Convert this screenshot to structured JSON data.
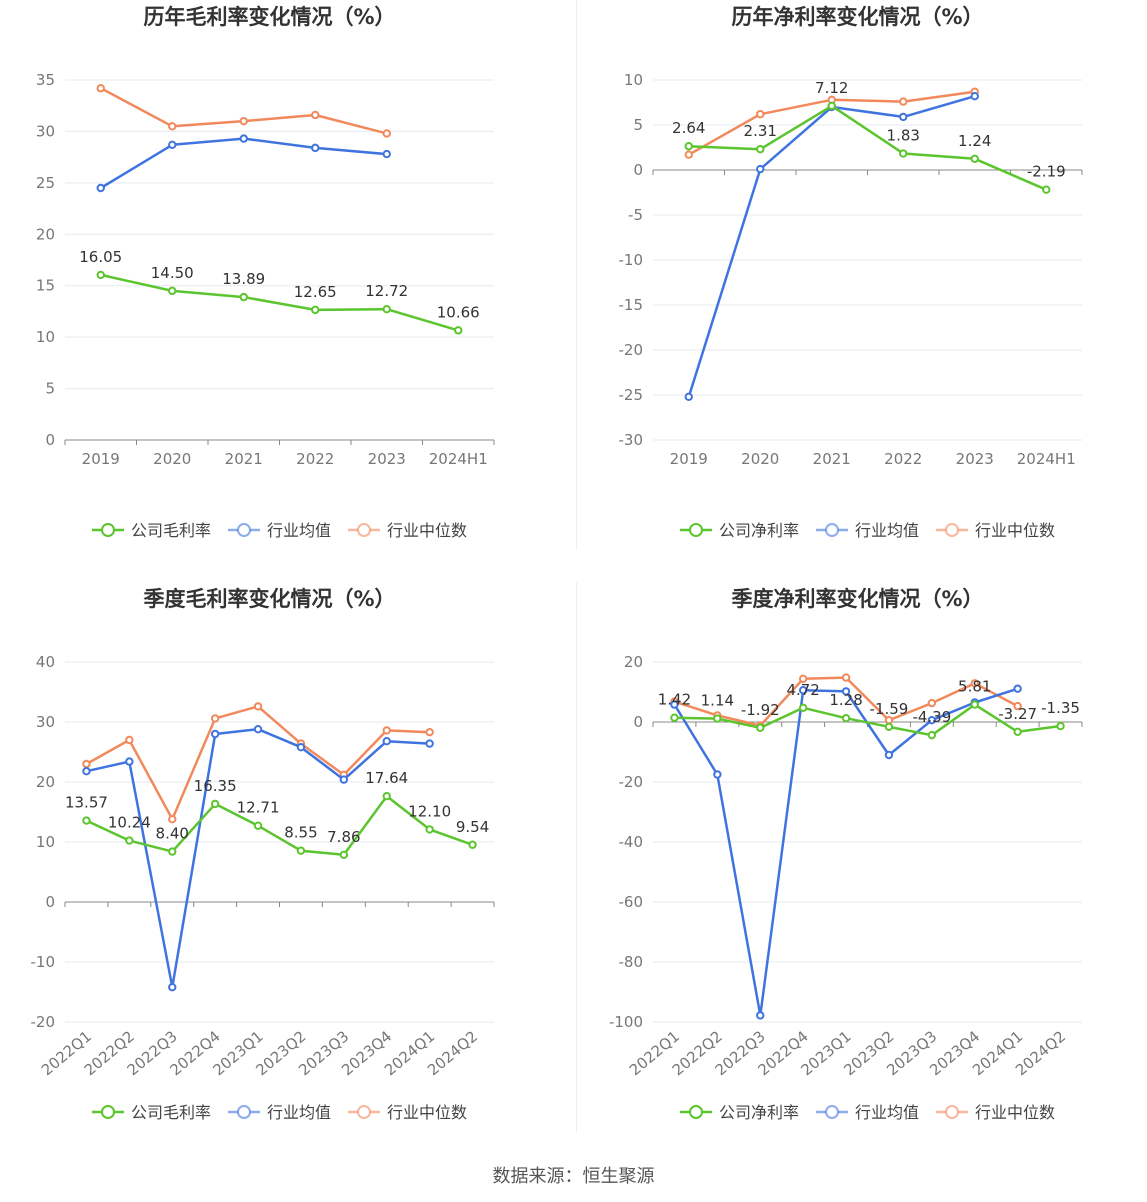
{
  "source_label": "数据来源：恒生聚源",
  "colors": {
    "company": "#5bc52e",
    "industry_avg": "#3f74e0",
    "industry_median": "#f2895c"
  },
  "chart_data": [
    {
      "type": "line",
      "title": "历年毛利率变化情况（%）",
      "categories": [
        "2019",
        "2020",
        "2021",
        "2022",
        "2023",
        "2024H1"
      ],
      "ylim": [
        0,
        35
      ],
      "yticks": [
        0,
        5,
        10,
        15,
        20,
        25,
        30,
        35
      ],
      "rotate_x": false,
      "series": [
        {
          "name": "公司毛利率",
          "key": "company",
          "values": [
            16.05,
            14.5,
            13.89,
            12.65,
            12.72,
            10.66
          ],
          "labels": [
            "16.05",
            "14.50",
            "13.89",
            "12.65",
            "12.72",
            "10.66"
          ]
        },
        {
          "name": "行业均值",
          "key": "industry_avg",
          "values": [
            24.5,
            28.7,
            29.3,
            28.4,
            27.8,
            null
          ]
        },
        {
          "name": "行业中位数",
          "key": "industry_median",
          "values": [
            34.2,
            30.5,
            31.0,
            31.6,
            29.8,
            null
          ]
        }
      ]
    },
    {
      "type": "line",
      "title": "历年净利率变化情况（%）",
      "categories": [
        "2019",
        "2020",
        "2021",
        "2022",
        "2023",
        "2024H1"
      ],
      "ylim": [
        -30,
        10
      ],
      "yticks": [
        -30,
        -25,
        -20,
        -15,
        -10,
        -5,
        0,
        5,
        10
      ],
      "rotate_x": false,
      "series": [
        {
          "name": "公司净利率",
          "key": "company",
          "values": [
            2.64,
            2.31,
            7.12,
            1.83,
            1.24,
            -2.19
          ],
          "labels": [
            "2.64",
            "2.31",
            "7.12",
            "1.83",
            "1.24",
            "-2.19"
          ]
        },
        {
          "name": "行业均值",
          "key": "industry_avg",
          "values": [
            -25.2,
            0.1,
            7.0,
            5.9,
            8.2,
            null
          ]
        },
        {
          "name": "行业中位数",
          "key": "industry_median",
          "values": [
            1.7,
            6.2,
            7.8,
            7.6,
            8.7,
            null
          ]
        }
      ]
    },
    {
      "type": "line",
      "title": "季度毛利率变化情况（%）",
      "categories": [
        "2022Q1",
        "2022Q2",
        "2022Q3",
        "2022Q4",
        "2023Q1",
        "2023Q2",
        "2023Q3",
        "2023Q4",
        "2024Q1",
        "2024Q2"
      ],
      "ylim": [
        -20,
        40
      ],
      "yticks": [
        -20,
        -10,
        0,
        10,
        20,
        30,
        40
      ],
      "rotate_x": true,
      "series": [
        {
          "name": "公司毛利率",
          "key": "company",
          "values": [
            13.57,
            10.24,
            8.4,
            16.35,
            12.71,
            8.55,
            7.86,
            17.64,
            12.1,
            9.54
          ],
          "labels": [
            "13.57",
            "10.24",
            "8.40",
            "16.35",
            "12.71",
            "8.55",
            "7.86",
            "17.64",
            "12.10",
            "9.54"
          ]
        },
        {
          "name": "行业均值",
          "key": "industry_avg",
          "values": [
            21.8,
            23.4,
            -14.2,
            28.0,
            28.8,
            25.8,
            20.4,
            26.8,
            26.4,
            null
          ]
        },
        {
          "name": "行业中位数",
          "key": "industry_median",
          "values": [
            23.0,
            27.0,
            13.8,
            30.6,
            32.6,
            26.4,
            21.2,
            28.6,
            28.3,
            null
          ]
        }
      ]
    },
    {
      "type": "line",
      "title": "季度净利率变化情况（%）",
      "categories": [
        "2022Q1",
        "2022Q2",
        "2022Q3",
        "2022Q4",
        "2023Q1",
        "2023Q2",
        "2023Q3",
        "2023Q4",
        "2024Q1",
        "2024Q2"
      ],
      "ylim": [
        -100,
        20
      ],
      "yticks": [
        -100,
        -80,
        -60,
        -40,
        -20,
        0,
        20
      ],
      "rotate_x": true,
      "series": [
        {
          "name": "公司净利率",
          "key": "company",
          "values": [
            1.42,
            1.14,
            -1.92,
            4.72,
            1.28,
            -1.59,
            -4.39,
            5.81,
            -3.27,
            -1.35
          ],
          "labels": [
            "1.42",
            "1.14",
            "-1.92",
            "4.72",
            "1.28",
            "-1.59",
            "-4.39",
            "5.81",
            "-3.27",
            "-1.35"
          ]
        },
        {
          "name": "行业均值",
          "key": "industry_avg",
          "values": [
            5.8,
            -17.5,
            -97.8,
            10.6,
            10.2,
            -11.0,
            0.6,
            6.5,
            11.1,
            null
          ]
        },
        {
          "name": "行业中位数",
          "key": "industry_median",
          "values": [
            6.8,
            2.2,
            -1.2,
            14.4,
            14.8,
            0.6,
            6.3,
            12.9,
            5.3,
            null
          ]
        }
      ]
    }
  ]
}
